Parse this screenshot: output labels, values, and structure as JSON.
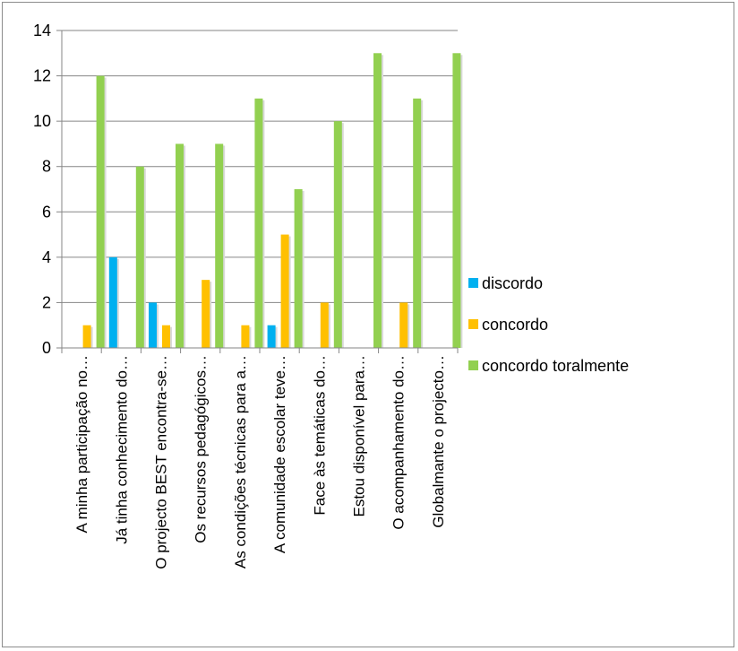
{
  "chart_data": {
    "type": "bar",
    "title": "",
    "xlabel": "",
    "ylabel": "",
    "ylim": [
      0,
      14
    ],
    "y_ticks": [
      0,
      2,
      4,
      6,
      8,
      10,
      12,
      14
    ],
    "grid": true,
    "legend_position": "right",
    "categories": [
      "A minha participação no…",
      "Já tinha conhecimento do…",
      "O projecto BEST encontra-se…",
      "Os recursos pedagógicos…",
      "As condições técnicas para a…",
      "A comunidade escolar teve…",
      "Face às temáticas do…",
      "Estou disponível para…",
      "O acompanhamento do…",
      "Globalmante o projecto…"
    ],
    "series": [
      {
        "name": "discordo",
        "color": "#00b0f0",
        "values": [
          0,
          4,
          2,
          0,
          0,
          1,
          0,
          0,
          0,
          0
        ]
      },
      {
        "name": "concordo",
        "color": "#ffc000",
        "values": [
          1,
          0,
          1,
          3,
          1,
          5,
          2,
          0,
          2,
          0
        ]
      },
      {
        "name": "concordo toralmente",
        "color": "#92d050",
        "values": [
          12,
          8,
          9,
          9,
          11,
          7,
          10,
          13,
          11,
          13
        ]
      }
    ]
  }
}
